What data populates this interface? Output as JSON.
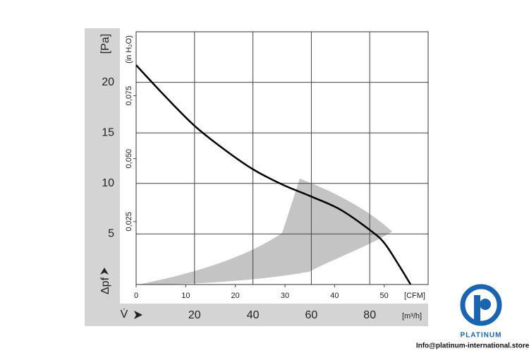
{
  "chart_data": {
    "type": "line",
    "x": [
      0,
      10,
      20,
      30,
      40,
      50,
      60,
      70,
      80,
      85,
      90,
      94
    ],
    "series": [
      {
        "color": "#000000",
        "values": [
          21.7,
          18.6,
          15.7,
          13.4,
          11.4,
          9.9,
          8.7,
          7.4,
          5.4,
          4.1,
          1.9,
          0
        ]
      }
    ],
    "xlim": [
      0,
      100
    ],
    "xticks": [
      20,
      40,
      60,
      80
    ],
    "ylim": [
      0,
      25
    ],
    "yticks": [
      5,
      10,
      15,
      20
    ],
    "x2lim": [
      0,
      58.86
    ],
    "x2ticks": [
      0,
      10,
      20,
      30,
      40,
      50
    ],
    "y2lim": [
      0,
      0.1004
    ],
    "y2ticks": [
      {
        "value": 0.025,
        "label": "0,025"
      },
      {
        "value": 0.05,
        "label": "0,050"
      },
      {
        "value": 0.075,
        "label": "0,075"
      }
    ],
    "y_unit": "[Pa]",
    "y2_unit": "(in H₂O)",
    "x_unit": "[m³/h]",
    "x2_unit": "[CFM]",
    "y_label": "Δpf",
    "x_label": "V̇",
    "grid": true
  },
  "watermark": {
    "brand": "PLATINUM",
    "contact": "Info@platinum-international.store"
  }
}
